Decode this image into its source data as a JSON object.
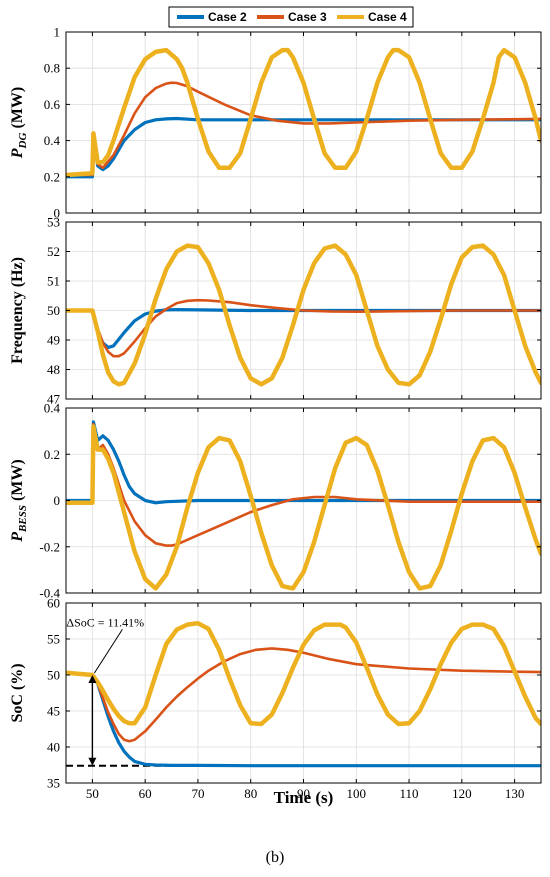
{
  "figure_label": "(b)",
  "colors": {
    "case2": "#0072BD",
    "case3": "#D95319",
    "case4": "#EDB120"
  },
  "legend": [
    "Case 2",
    "Case 3",
    "Case 4"
  ],
  "chart_data": [
    {
      "type": "line",
      "ylabel": "P_DG (MW)",
      "ylabel_main": "P",
      "ylabel_sub": "DG",
      "ylabel_unit": " (MW)",
      "xlim": [
        45,
        135
      ],
      "ylim": [
        0,
        1
      ],
      "xticks": [
        50,
        60,
        70,
        80,
        90,
        100,
        110,
        120,
        130
      ],
      "yticks": [
        0,
        0.2,
        0.4,
        0.6,
        0.8,
        1
      ],
      "ytick_labels": [
        "0",
        "0.2",
        "0.4",
        "0.6",
        "0.8",
        "1"
      ],
      "series": [
        {
          "name": "Case 2",
          "x": [
            45,
            50,
            50.2,
            51,
            52,
            53,
            54,
            55,
            56,
            58,
            60,
            62,
            64,
            66,
            70,
            80,
            90,
            100,
            110,
            120,
            135
          ],
          "y": [
            0.2,
            0.2,
            0.42,
            0.26,
            0.24,
            0.26,
            0.3,
            0.35,
            0.4,
            0.46,
            0.5,
            0.515,
            0.52,
            0.522,
            0.515,
            0.515,
            0.515,
            0.515,
            0.515,
            0.515,
            0.515
          ]
        },
        {
          "name": "Case 3",
          "x": [
            45,
            50,
            50.2,
            51,
            52,
            54,
            56,
            58,
            60,
            62,
            64,
            65,
            66,
            68,
            70,
            75,
            80,
            85,
            90,
            95,
            100,
            110,
            120,
            135
          ],
          "y": [
            0.21,
            0.21,
            0.43,
            0.27,
            0.25,
            0.32,
            0.43,
            0.55,
            0.64,
            0.69,
            0.715,
            0.72,
            0.718,
            0.7,
            0.67,
            0.6,
            0.54,
            0.51,
            0.495,
            0.495,
            0.5,
            0.51,
            0.515,
            0.52
          ]
        },
        {
          "name": "Case 4",
          "x": [
            45,
            50,
            50.2,
            51,
            52,
            53,
            54,
            56,
            58,
            60,
            62,
            64,
            66,
            67,
            68,
            70,
            72,
            74,
            76,
            78,
            80,
            82,
            84,
            86,
            87,
            88,
            90,
            92,
            94,
            96,
            98,
            100,
            102,
            104,
            106,
            107,
            108,
            110,
            112,
            114,
            116,
            118,
            120,
            122,
            124,
            126,
            127,
            128,
            130,
            132,
            134,
            135
          ],
          "y": [
            0.21,
            0.22,
            0.44,
            0.28,
            0.28,
            0.32,
            0.4,
            0.58,
            0.75,
            0.85,
            0.89,
            0.9,
            0.85,
            0.8,
            0.72,
            0.52,
            0.34,
            0.25,
            0.25,
            0.33,
            0.52,
            0.72,
            0.86,
            0.9,
            0.9,
            0.86,
            0.72,
            0.52,
            0.33,
            0.25,
            0.25,
            0.34,
            0.52,
            0.72,
            0.86,
            0.9,
            0.9,
            0.86,
            0.72,
            0.52,
            0.33,
            0.25,
            0.25,
            0.34,
            0.52,
            0.72,
            0.86,
            0.9,
            0.86,
            0.72,
            0.52,
            0.4
          ]
        }
      ]
    },
    {
      "type": "line",
      "ylabel": "Frequency (Hz)",
      "ylabel_main": "Frequency (Hz)",
      "ylabel_sub": "",
      "ylabel_unit": "",
      "xlim": [
        45,
        135
      ],
      "ylim": [
        47,
        53
      ],
      "xticks": [
        50,
        60,
        70,
        80,
        90,
        100,
        110,
        120,
        130
      ],
      "yticks": [
        47,
        48,
        49,
        50,
        51,
        52,
        53
      ],
      "ytick_labels": [
        "47",
        "48",
        "49",
        "50",
        "51",
        "52",
        "53"
      ],
      "series": [
        {
          "name": "Case 2",
          "x": [
            45,
            50,
            51,
            52,
            53,
            54,
            56,
            58,
            60,
            62,
            64,
            66,
            70,
            80,
            90,
            100,
            135
          ],
          "y": [
            50,
            50,
            49.3,
            48.9,
            48.75,
            48.8,
            49.25,
            49.65,
            49.88,
            49.98,
            50.02,
            50.03,
            50.02,
            50.0,
            50.0,
            50.0,
            50.0
          ]
        },
        {
          "name": "Case 3",
          "x": [
            45,
            50,
            51,
            52,
            53,
            54,
            55,
            56,
            58,
            60,
            62,
            64,
            66,
            68,
            70,
            72,
            76,
            80,
            85,
            90,
            95,
            100,
            110,
            120,
            135
          ],
          "y": [
            50,
            50,
            49.4,
            48.9,
            48.6,
            48.45,
            48.45,
            48.55,
            48.95,
            49.4,
            49.8,
            50.05,
            50.25,
            50.33,
            50.35,
            50.34,
            50.28,
            50.18,
            50.08,
            50.0,
            49.97,
            49.96,
            49.98,
            50.0,
            50.0
          ]
        },
        {
          "name": "Case 4",
          "x": [
            45,
            50,
            51,
            52,
            53,
            54,
            55,
            56,
            58,
            60,
            62,
            64,
            66,
            68,
            70,
            72,
            74,
            76,
            78,
            80,
            82,
            84,
            86,
            88,
            90,
            92,
            94,
            96,
            98,
            100,
            102,
            104,
            106,
            108,
            110,
            112,
            114,
            116,
            118,
            120,
            122,
            124,
            126,
            128,
            130,
            132,
            134,
            135
          ],
          "y": [
            50,
            50,
            49.3,
            48.5,
            47.9,
            47.6,
            47.5,
            47.55,
            48.2,
            49.2,
            50.4,
            51.4,
            52.0,
            52.2,
            52.15,
            51.6,
            50.7,
            49.5,
            48.4,
            47.7,
            47.5,
            47.7,
            48.4,
            49.5,
            50.7,
            51.6,
            52.1,
            52.2,
            51.9,
            51.2,
            50.0,
            48.8,
            48.0,
            47.55,
            47.5,
            47.8,
            48.6,
            49.7,
            50.9,
            51.8,
            52.15,
            52.2,
            51.9,
            51.2,
            50.0,
            48.8,
            47.9,
            47.55
          ]
        }
      ]
    },
    {
      "type": "line",
      "ylabel": "P_BESS (MW)",
      "ylabel_main": "P",
      "ylabel_sub": "BESS",
      "ylabel_unit": " (MW)",
      "xlim": [
        45,
        135
      ],
      "ylim": [
        -0.4,
        0.4
      ],
      "xticks": [
        50,
        60,
        70,
        80,
        90,
        100,
        110,
        120,
        130
      ],
      "yticks": [
        -0.4,
        -0.2,
        0,
        0.2,
        0.4
      ],
      "ytick_labels": [
        "-0.4",
        "-0.2",
        "0",
        "0.2",
        "0.4"
      ],
      "series": [
        {
          "name": "Case 2",
          "x": [
            45,
            50,
            50.2,
            51,
            52,
            53,
            54,
            55,
            56,
            57,
            58,
            60,
            62,
            64,
            70,
            80,
            90,
            100,
            135
          ],
          "y": [
            0,
            0,
            0.34,
            0.26,
            0.28,
            0.26,
            0.22,
            0.17,
            0.11,
            0.06,
            0.03,
            0.0,
            -0.01,
            -0.005,
            0,
            0,
            0,
            0,
            0
          ]
        },
        {
          "name": "Case 3",
          "x": [
            45,
            50,
            50.2,
            51,
            52,
            53,
            54,
            55,
            56,
            58,
            60,
            62,
            64,
            65,
            66,
            68,
            70,
            74,
            78,
            80,
            84,
            88,
            92,
            96,
            100,
            110,
            120,
            135
          ],
          "y": [
            -0.01,
            -0.01,
            0.33,
            0.22,
            0.24,
            0.2,
            0.14,
            0.07,
            0.0,
            -0.09,
            -0.15,
            -0.185,
            -0.195,
            -0.195,
            -0.19,
            -0.17,
            -0.15,
            -0.11,
            -0.07,
            -0.05,
            -0.02,
            0.005,
            0.015,
            0.015,
            0.005,
            -0.005,
            -0.005,
            -0.005
          ]
        },
        {
          "name": "Case 4",
          "x": [
            45,
            50,
            50.2,
            51,
            52,
            53,
            54,
            56,
            58,
            60,
            62,
            64,
            66,
            68,
            70,
            72,
            74,
            76,
            78,
            80,
            82,
            84,
            86,
            88,
            90,
            92,
            94,
            96,
            98,
            100,
            102,
            104,
            106,
            108,
            110,
            112,
            114,
            116,
            118,
            120,
            122,
            124,
            126,
            128,
            130,
            132,
            134,
            135
          ],
          "y": [
            -0.01,
            -0.01,
            0.32,
            0.22,
            0.22,
            0.18,
            0.12,
            -0.05,
            -0.22,
            -0.34,
            -0.38,
            -0.32,
            -0.2,
            -0.03,
            0.12,
            0.23,
            0.27,
            0.26,
            0.17,
            0.02,
            -0.14,
            -0.28,
            -0.37,
            -0.38,
            -0.31,
            -0.18,
            -0.02,
            0.14,
            0.25,
            0.27,
            0.24,
            0.13,
            -0.02,
            -0.18,
            -0.31,
            -0.38,
            -0.37,
            -0.28,
            -0.13,
            0.03,
            0.17,
            0.26,
            0.27,
            0.23,
            0.12,
            -0.03,
            -0.17,
            -0.23
          ]
        }
      ]
    },
    {
      "type": "line",
      "ylabel": "SoC (%)",
      "ylabel_main": "SoC (%)",
      "ylabel_sub": "",
      "ylabel_unit": "",
      "xlabel": "Time (s)",
      "xlim": [
        45,
        135
      ],
      "ylim": [
        35,
        60
      ],
      "xticks": [
        50,
        60,
        70,
        80,
        90,
        100,
        110,
        120,
        130
      ],
      "xtick_labels": [
        "50",
        "60",
        "70",
        "80",
        "90",
        "100",
        "110",
        "120",
        "130"
      ],
      "yticks": [
        35,
        40,
        45,
        50,
        55,
        60
      ],
      "ytick_labels": [
        "35",
        "40",
        "45",
        "50",
        "55",
        "60"
      ],
      "annotation": "ΔSoC = 11.41%",
      "reference_y": 37.4,
      "series": [
        {
          "name": "Case 2",
          "x": [
            45,
            50,
            51,
            52,
            53,
            54,
            55,
            56,
            57,
            58,
            60,
            62,
            65,
            70,
            80,
            100,
            135
          ],
          "y": [
            50.3,
            50.0,
            48.8,
            46.5,
            44.2,
            42.2,
            40.6,
            39.4,
            38.6,
            38.0,
            37.6,
            37.5,
            37.45,
            37.45,
            37.4,
            37.4,
            37.4
          ]
        },
        {
          "name": "Case 3",
          "x": [
            45,
            50,
            51,
            52,
            53,
            54,
            55,
            56,
            57,
            58,
            60,
            62,
            64,
            66,
            68,
            70,
            72,
            75,
            78,
            81,
            84,
            87,
            90,
            95,
            100,
            110,
            120,
            135
          ],
          "y": [
            50.3,
            50.0,
            48.8,
            46.8,
            44.8,
            43.2,
            41.8,
            41.0,
            40.8,
            41.0,
            42.2,
            43.8,
            45.5,
            47.0,
            48.3,
            49.5,
            50.6,
            51.9,
            52.9,
            53.5,
            53.7,
            53.5,
            53.1,
            52.2,
            51.5,
            50.9,
            50.6,
            50.4
          ]
        },
        {
          "name": "Case 4",
          "x": [
            45,
            50,
            51,
            52,
            53,
            54,
            55,
            56,
            57,
            58,
            60,
            62,
            64,
            66,
            68,
            70,
            72,
            74,
            76,
            78,
            80,
            82,
            84,
            86,
            88,
            90,
            92,
            94,
            96,
            97,
            98,
            100,
            102,
            104,
            106,
            108,
            110,
            112,
            114,
            116,
            118,
            120,
            122,
            124,
            126,
            128,
            130,
            132,
            134,
            135
          ],
          "y": [
            50.3,
            50.0,
            49.0,
            47.8,
            46.5,
            45.3,
            44.3,
            43.6,
            43.3,
            43.3,
            45.5,
            50.0,
            54.3,
            56.3,
            57.0,
            57.2,
            56.4,
            53.5,
            49.5,
            45.8,
            43.3,
            43.2,
            44.5,
            47.5,
            51.0,
            54.2,
            56.2,
            57.0,
            57.0,
            57.0,
            56.6,
            54.5,
            51.0,
            47.3,
            44.5,
            43.2,
            43.3,
            45.0,
            48.0,
            51.5,
            54.5,
            56.4,
            57.0,
            57.0,
            56.4,
            54.0,
            50.5,
            47.0,
            44.0,
            43.2
          ]
        }
      ]
    }
  ]
}
